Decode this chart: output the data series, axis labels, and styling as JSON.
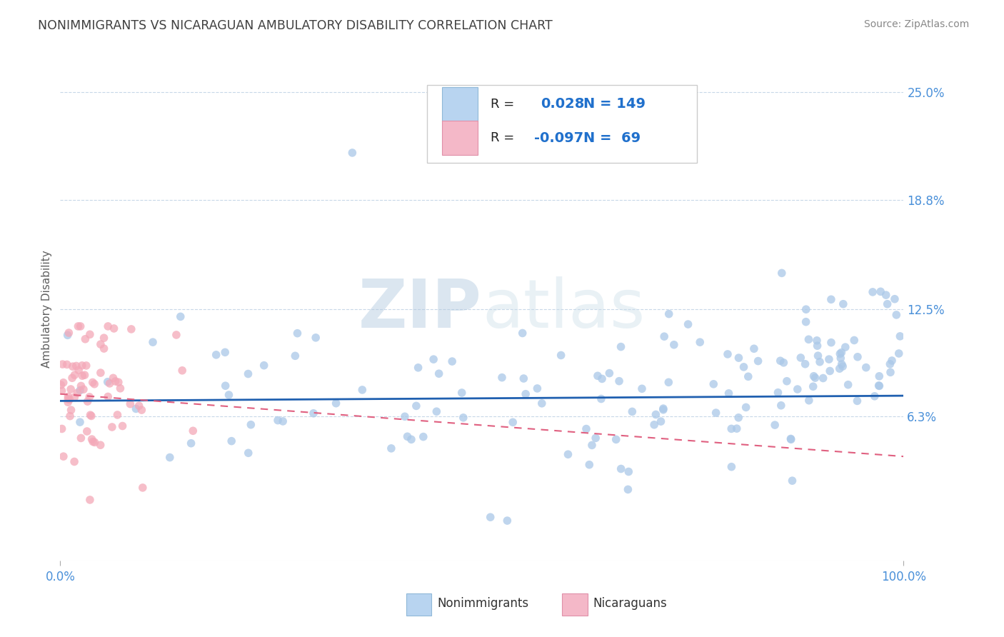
{
  "title": "NONIMMIGRANTS VS NICARAGUAN AMBULATORY DISABILITY CORRELATION CHART",
  "source": "Source: ZipAtlas.com",
  "ylabel": "Ambulatory Disability",
  "xlim": [
    0,
    1.0
  ],
  "ylim": [
    -0.02,
    0.27
  ],
  "yticks": [
    0.063,
    0.125,
    0.188,
    0.25
  ],
  "ytick_labels": [
    "6.3%",
    "12.5%",
    "18.8%",
    "25.0%"
  ],
  "R1": 0.028,
  "N1": 149,
  "R2": -0.097,
  "N2": 69,
  "blue_color": "#aac8e8",
  "pink_color": "#f4a8b8",
  "blue_line_color": "#2060b0",
  "pink_line_color": "#e06080",
  "legend_box_blue": "#b8d4f0",
  "legend_box_pink": "#f4b8c8",
  "legend_border": "#cccccc",
  "title_color": "#404040",
  "axis_label_color": "#606060",
  "tick_color": "#4a90d9",
  "watermark_color": "#dce8f0",
  "grid_color": "#c8d8e8",
  "source_color": "#888888",
  "seed": 42,
  "blue_line_y0": 0.072,
  "blue_line_y1": 0.075,
  "pink_line_y0": 0.076,
  "pink_line_y1": 0.04
}
